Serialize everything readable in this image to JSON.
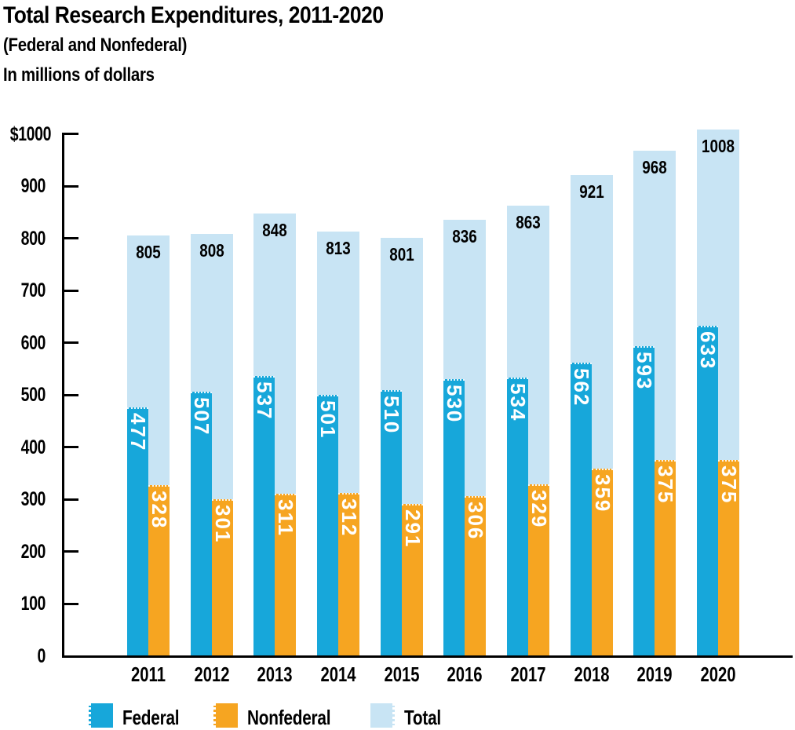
{
  "title": "Total Research Expenditures, 2011-2020",
  "subtitle": "(Federal and Nonfederal)",
  "units_note": "In millions of dollars",
  "colors": {
    "federal": "#17a7da",
    "nonfederal": "#f6a521",
    "total": "#c8e4f4",
    "axis": "#000000",
    "value_label_on_bar": "#ffffff",
    "value_label_on_total": "#000000"
  },
  "legend": [
    {
      "key": "federal",
      "label": "Federal"
    },
    {
      "key": "nonfederal",
      "label": "Nonfederal"
    },
    {
      "key": "total",
      "label": "Total"
    }
  ],
  "chart_data": {
    "type": "bar",
    "title": "Total Research Expenditures, 2011-2020",
    "subtitle": "(Federal and Nonfederal)",
    "ylabel": "In millions of dollars",
    "xlabel": "",
    "categories": [
      "2011",
      "2012",
      "2013",
      "2014",
      "2015",
      "2016",
      "2017",
      "2018",
      "2019",
      "2020"
    ],
    "series": [
      {
        "name": "Federal",
        "values": [
          477,
          507,
          537,
          501,
          510,
          530,
          534,
          562,
          593,
          633
        ]
      },
      {
        "name": "Nonfederal",
        "values": [
          328,
          301,
          311,
          312,
          291,
          306,
          329,
          359,
          375,
          375
        ]
      },
      {
        "name": "Total",
        "values": [
          805,
          808,
          848,
          813,
          801,
          836,
          863,
          921,
          968,
          1008
        ]
      }
    ],
    "ylim": [
      0,
      1000
    ],
    "y_ticks": [
      "$1000",
      "900",
      "800",
      "700",
      "600",
      "500",
      "400",
      "300",
      "200",
      "100",
      "0"
    ],
    "y_tick_values": [
      1000,
      900,
      800,
      700,
      600,
      500,
      400,
      300,
      200,
      100,
      0
    ],
    "grid": false,
    "legend_position": "bottom"
  }
}
